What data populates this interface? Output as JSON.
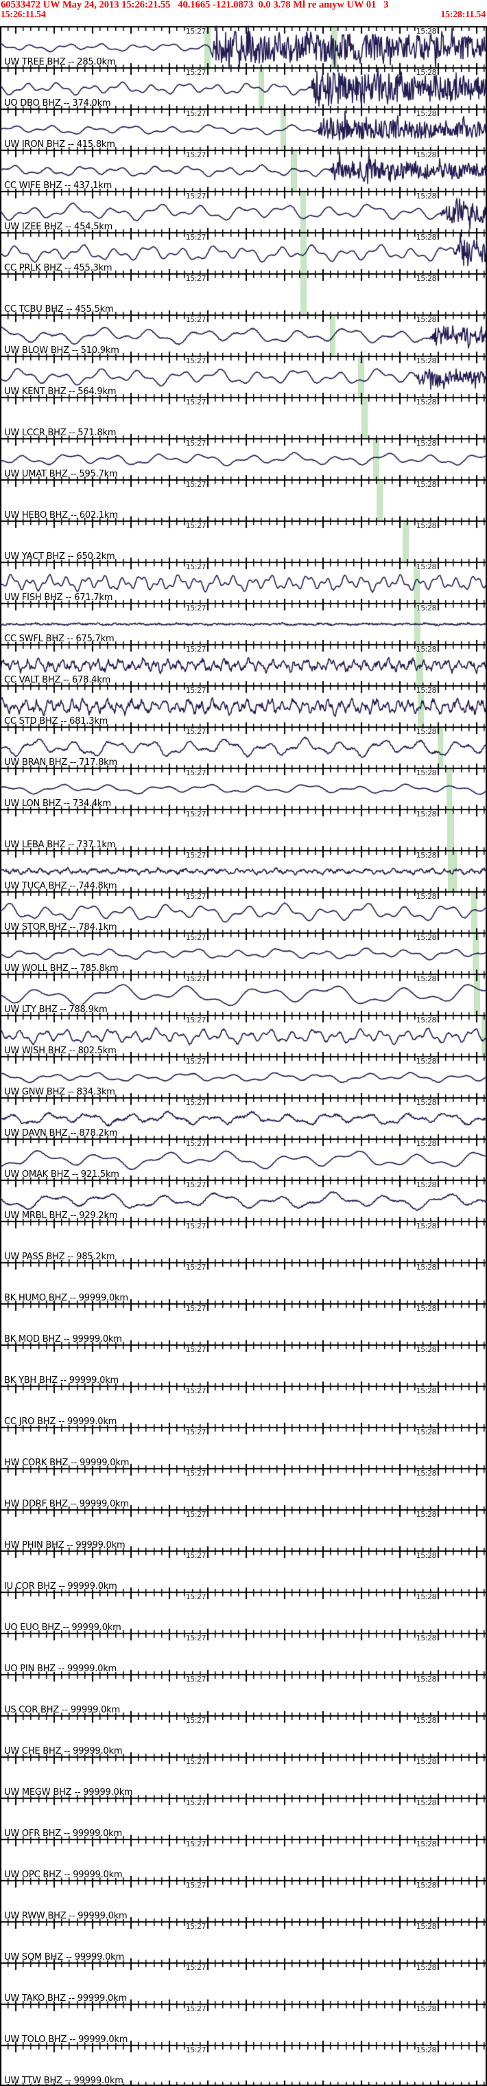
{
  "header": {
    "event_line": "60533472 UW May 24, 2013 15:26:21.55   40.1665 -121.0873  0.0 3.78 Ml re amyw UW 01   3",
    "event_id": "60533472",
    "network": "UW",
    "origin_time": "May 24, 2013 15:26:21.55",
    "latitude": "40.1665",
    "longitude": "-121.0873",
    "depth": "0.0",
    "magnitude": "3.78 Ml",
    "reviewer": "re amyw",
    "window_start": "15:26:11.54",
    "window_end": "15:28:11.54"
  },
  "timeline": {
    "minute_labels": {
      "first": "15:27",
      "second": "15:28"
    },
    "major_tick_x": [
      22,
      78,
      134,
      190,
      246,
      302,
      358,
      414,
      470,
      526,
      582,
      638,
      694
    ],
    "minor_tick_spacing": 11.2,
    "minor_tick_offset": 10.8
  },
  "colors": {
    "header_red": "#ff0000",
    "trace_navy": "#241d52",
    "pick_green": "#c8e6c3",
    "ruler_black": "#000000",
    "time_label_gray": "#2b2b2b"
  },
  "traces": [
    {
      "label": "UW TREE BHZ -- 285.0km",
      "picks": [
        [
          298,
          9
        ],
        [
          483,
          9
        ]
      ],
      "wave": {
        "amp": 6,
        "wl": 50,
        "jit": 0.4,
        "burst_start": 305,
        "burst_amp": 24
      }
    },
    {
      "label": "UO DBO BHZ -- 374.0km",
      "picks": [
        [
          377,
          8
        ]
      ],
      "wave": {
        "amp": 9,
        "wl": 46,
        "jit": 0.4,
        "burst_start": 452,
        "burst_amp": 26
      }
    },
    {
      "label": "UW IRON BHZ -- 415.8km",
      "picks": [
        [
          409,
          8
        ]
      ],
      "wave": {
        "amp": 7,
        "wl": 58,
        "jit": 0.4,
        "burst_start": 462,
        "burst_amp": 17
      }
    },
    {
      "label": "CC WIFE BHZ -- 437.1km",
      "picks": [
        [
          424,
          9
        ]
      ],
      "wave": {
        "amp": 8,
        "wl": 52,
        "jit": 0.6,
        "burst_start": 480,
        "burst_amp": 15
      }
    },
    {
      "label": "UW IZEE BHZ -- 454.5km",
      "picks": [
        [
          438,
          8
        ]
      ],
      "wave": {
        "amp": 12,
        "wl": 62,
        "jit": 0.5,
        "burst_start": 642,
        "burst_amp": 20
      }
    },
    {
      "label": "CC PRLK BHZ -- 455.3km",
      "picks": [
        [
          438,
          9
        ]
      ],
      "wave": {
        "amp": 12,
        "wl": 48,
        "jit": 0.5,
        "burst_start": 662,
        "burst_amp": 24
      }
    },
    {
      "label": "CC TCBU BHZ -- 455.5km",
      "picks": [
        [
          438,
          9
        ]
      ],
      "wave": null
    },
    {
      "label": "UW BLOW BHZ -- 510.9km",
      "picks": [
        [
          481,
          8
        ]
      ],
      "wave": {
        "amp": 12,
        "wl": 72,
        "jit": 0.7,
        "burst_start": 628,
        "burst_amp": 15
      }
    },
    {
      "label": "UW KENT BHZ -- 564.9km",
      "picks": [
        [
          522,
          9
        ]
      ],
      "wave": {
        "amp": 12,
        "wl": 58,
        "jit": 0.6,
        "burst_start": 605,
        "burst_amp": 13
      }
    },
    {
      "label": "UW LCCR BHZ -- 571.8km",
      "picks": [
        [
          527,
          9
        ]
      ],
      "wave": null
    },
    {
      "label": "UW UMAT BHZ -- 595.7km",
      "picks": [
        [
          544,
          9
        ]
      ],
      "wave": {
        "amp": 9,
        "wl": 66,
        "jit": 0.5
      }
    },
    {
      "label": "UW HEBO BHZ -- 602.1km",
      "picks": [
        [
          549,
          9
        ]
      ],
      "wave": null
    },
    {
      "label": "UW YACT BHZ -- 650.2km",
      "picks": [
        [
          587,
          9
        ]
      ],
      "wave": null
    },
    {
      "label": "UW FISH BHZ -- 671.7km",
      "picks": [
        [
          603,
          9
        ]
      ],
      "wave": {
        "amp": 12,
        "wl": 27,
        "jit": 0.7
      }
    },
    {
      "label": "CC SWFL BHZ -- 675.7km",
      "picks": [
        [
          604,
          9
        ]
      ],
      "wave": {
        "amp": 1.2,
        "wl": 30,
        "jit": 1.2
      }
    },
    {
      "label": "CC VALT BHZ -- 678.4km",
      "picks": [
        [
          607,
          10
        ]
      ],
      "wave": {
        "amp": 9,
        "wl": 17,
        "jit": 3.2
      }
    },
    {
      "label": "CC STD BHZ -- 681.3km",
      "picks": [
        [
          609,
          9
        ]
      ],
      "wave": {
        "amp": 11,
        "wl": 17,
        "jit": 3.6
      }
    },
    {
      "label": "UW BRAN BHZ -- 717.8km",
      "picks": [
        [
          638,
          8
        ]
      ],
      "wave": {
        "amp": 13,
        "wl": 56,
        "jit": 1.4
      }
    },
    {
      "label": "UW LON BHZ -- 734.4km",
      "picks": [
        [
          651,
          8
        ]
      ],
      "wave": {
        "amp": 7,
        "wl": 72,
        "jit": 0.4
      }
    },
    {
      "label": "UW LEBA BHZ -- 737.1km",
      "picks": [
        [
          652,
          10
        ]
      ],
      "wave": null
    },
    {
      "label": "UW TUCA BHZ -- 744.8km",
      "picks": [
        [
          653,
          13
        ]
      ],
      "wave": {
        "amp": 4,
        "wl": 19,
        "jit": 1.8
      }
    },
    {
      "label": "UW STOR BHZ -- 784.1km",
      "picks": [
        [
          687,
          9
        ]
      ],
      "wave": {
        "amp": 13,
        "wl": 58,
        "jit": 0.5
      }
    },
    {
      "label": "UW WOLL BHZ -- 785.8km",
      "picks": [
        [
          689,
          9
        ]
      ],
      "wave": {
        "amp": 8,
        "wl": 62,
        "jit": 0.5
      }
    },
    {
      "label": "UW LTY BHZ -- 788.9km",
      "picks": [
        [
          691,
          9
        ]
      ],
      "wave": {
        "amp": 16,
        "wl": 105,
        "jit": 0.4
      }
    },
    {
      "label": "UW WISH BHZ -- 802.5km",
      "picks": [
        [
          702,
          8
        ]
      ],
      "wave": {
        "amp": 11,
        "wl": 33,
        "jit": 1.2
      }
    },
    {
      "label": "UW GNW BHZ -- 834.3km",
      "picks": [],
      "wave": {
        "amp": 7,
        "wl": 66,
        "jit": 0.5
      }
    },
    {
      "label": "UW DAVN BHZ -- 878.2km",
      "picks": [],
      "wave": {
        "amp": 9,
        "wl": 58,
        "jit": 1.6
      }
    },
    {
      "label": "UW OMAK BHZ -- 921.5km",
      "picks": [],
      "wave": {
        "amp": 13,
        "wl": 92,
        "jit": 0.5
      }
    },
    {
      "label": "UW MRBL BHZ -- 929.2km",
      "picks": [],
      "wave": {
        "amp": 12,
        "wl": 82,
        "jit": 1.1
      }
    },
    {
      "label": "UW PASS BHZ -- 985.2km",
      "picks": [],
      "wave": null
    },
    {
      "label": "BK HUMO BHZ -- 99999.0km",
      "picks": [],
      "wave": null
    },
    {
      "label": "BK MOD BHZ -- 99999.0km",
      "picks": [],
      "wave": null
    },
    {
      "label": "BK YBH BHZ -- 99999.0km",
      "picks": [],
      "wave": null
    },
    {
      "label": "CC JRO BHZ -- 99999.0km",
      "picks": [],
      "wave": null
    },
    {
      "label": "HW CORK BHZ -- 99999.0km",
      "picks": [],
      "wave": null
    },
    {
      "label": "HW DDRF BHZ -- 99999.0km",
      "picks": [],
      "wave": null
    },
    {
      "label": "HW PHIN BHZ -- 99999.0km",
      "picks": [],
      "wave": null
    },
    {
      "label": "IU COR BHZ -- 99999.0km",
      "picks": [],
      "wave": null
    },
    {
      "label": "UO EUO BHZ -- 99999.0km",
      "picks": [],
      "wave": null
    },
    {
      "label": "UO PIN BHZ -- 99999.0km",
      "picks": [],
      "wave": null
    },
    {
      "label": "US COR BHZ -- 99999.0km",
      "picks": [],
      "wave": null
    },
    {
      "label": "UW CHE BHZ -- 99999.0km",
      "picks": [],
      "wave": null
    },
    {
      "label": "UW MEGW BHZ -- 99999.0km",
      "picks": [],
      "wave": null
    },
    {
      "label": "UW OFR BHZ -- 99999.0km",
      "picks": [],
      "wave": null
    },
    {
      "label": "UW OPC BHZ -- 99999.0km",
      "picks": [],
      "wave": null
    },
    {
      "label": "UW RWW BHZ -- 99999.0km",
      "picks": [],
      "wave": null
    },
    {
      "label": "UW SQM BHZ -- 99999.0km",
      "picks": [],
      "wave": null
    },
    {
      "label": "UW TAKO BHZ -- 99999.0km",
      "picks": [],
      "wave": null
    },
    {
      "label": "UW TOLO BHZ -- 99999.0km",
      "picks": [],
      "wave": null
    },
    {
      "label": "UW TTW BHZ -- 99999.0km",
      "picks": [],
      "wave": null
    }
  ]
}
